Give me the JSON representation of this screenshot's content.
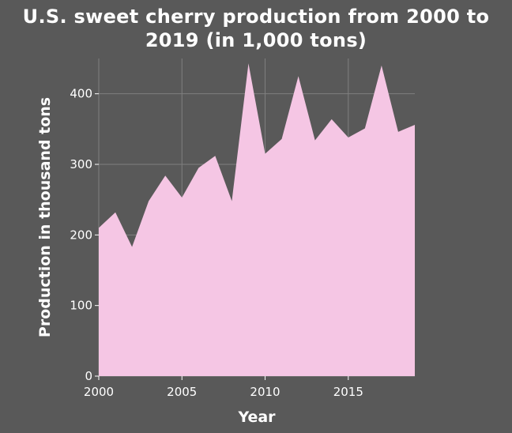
{
  "chart_data": {
    "type": "area",
    "title_line1": "U.S. sweet cherry production from 2000 to",
    "title_line2": "2019 (in 1,000 tons)",
    "xlabel": "Year",
    "ylabel": "Production in thousand tons",
    "x": [
      2000,
      2001,
      2002,
      2003,
      2004,
      2005,
      2006,
      2007,
      2008,
      2009,
      2010,
      2011,
      2012,
      2013,
      2014,
      2015,
      2016,
      2017,
      2018,
      2019
    ],
    "values": [
      210,
      232,
      183,
      248,
      284,
      253,
      295,
      312,
      248,
      443,
      315,
      336,
      425,
      334,
      364,
      338,
      351,
      440,
      346,
      356
    ],
    "xlim": [
      2000,
      2019
    ],
    "ylim": [
      0,
      450
    ],
    "xticks": [
      2000,
      2005,
      2010,
      2015
    ],
    "yticks": [
      0,
      100,
      200,
      300,
      400
    ],
    "grid": true,
    "colors": {
      "background": "#595959",
      "fill": "#f5c6e4",
      "grid": "#7f7f7f",
      "text": "#ffffff"
    }
  }
}
